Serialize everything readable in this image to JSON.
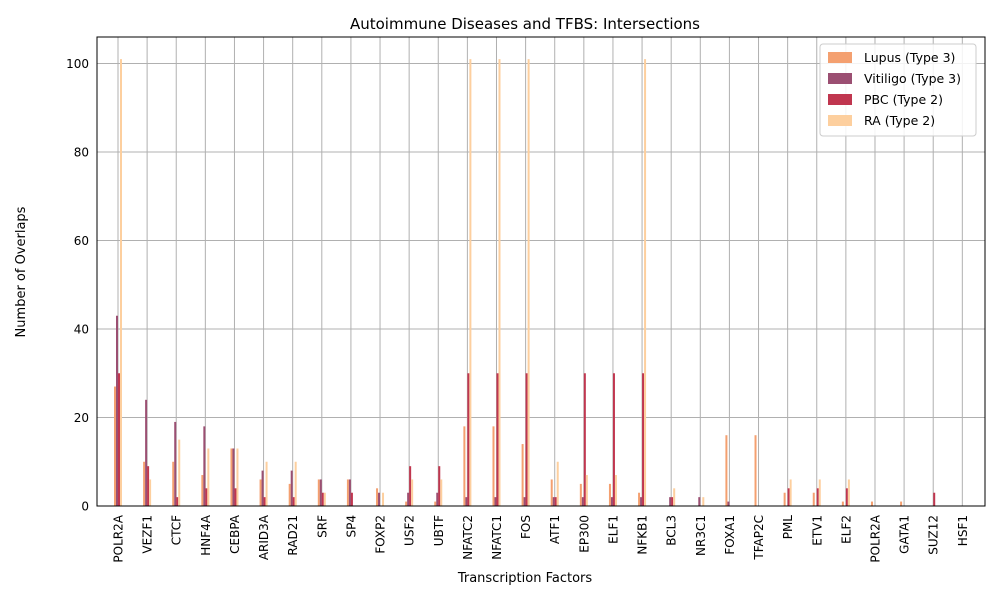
{
  "chart_data": {
    "type": "bar",
    "title": "Autoimmune Diseases and TFBS: Intersections",
    "xlabel": "Transcription Factors",
    "ylabel": "Number of Overlaps",
    "ylim": [
      0,
      106
    ],
    "yticks": [
      0,
      20,
      40,
      60,
      80,
      100
    ],
    "grid": true,
    "legend_position": "top-right",
    "categories": [
      "POLR2A",
      "VEZF1",
      "CTCF",
      "HNF4A",
      "CEBPA",
      "ARID3A",
      "RAD21",
      "SRF",
      "SP4",
      "FOXP2",
      "USF2",
      "UBTF",
      "NFATC2",
      "NFATC1",
      "FOS",
      "ATF1",
      "EP300",
      "ELF1",
      "NFKB1",
      "BCL3",
      "NR3C1",
      "FOXA1",
      "TFAP2C",
      "PML",
      "ETV1",
      "ELF2",
      "POLR2A",
      "GATA1",
      "SUZ12",
      "HSF1"
    ],
    "series": [
      {
        "name": "Lupus (Type 3)",
        "color": "#f4a070",
        "values": [
          27,
          10,
          10,
          7,
          13,
          6,
          5,
          6,
          6,
          4,
          1,
          1,
          18,
          18,
          14,
          6,
          5,
          5,
          3,
          0,
          0,
          16,
          16,
          3,
          3,
          1,
          1,
          1,
          0,
          0
        ]
      },
      {
        "name": "Vitiligo (Type 3)",
        "color": "#9b4f72",
        "values": [
          43,
          24,
          19,
          18,
          13,
          8,
          8,
          6,
          6,
          3,
          3,
          3,
          2,
          2,
          2,
          2,
          2,
          2,
          2,
          2,
          2,
          1,
          0,
          0,
          0,
          0,
          0,
          0,
          0,
          0
        ]
      },
      {
        "name": "PBC (Type 2)",
        "color": "#c0364f",
        "values": [
          30,
          9,
          2,
          4,
          4,
          2,
          2,
          3,
          3,
          0,
          9,
          9,
          30,
          30,
          30,
          2,
          30,
          30,
          30,
          2,
          0,
          0,
          0,
          4,
          4,
          4,
          0,
          0,
          3,
          0
        ]
      },
      {
        "name": "RA (Type 2)",
        "color": "#fdcf9e",
        "values": [
          101,
          6,
          15,
          13,
          13,
          10,
          10,
          3,
          0,
          3,
          6,
          6,
          101,
          101,
          101,
          10,
          7,
          7,
          101,
          4,
          2,
          0,
          0,
          6,
          6,
          6,
          0,
          0,
          0,
          0
        ]
      }
    ]
  }
}
